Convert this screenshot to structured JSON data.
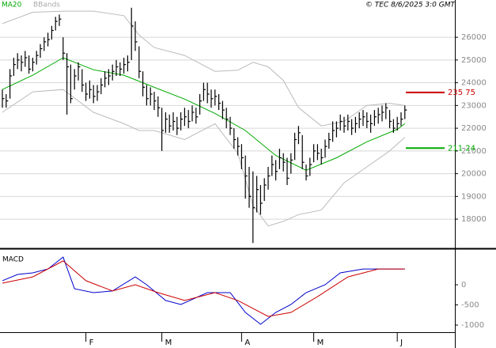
{
  "chart_data": [
    {
      "type": "ohlc",
      "source": "© TEC 8/6/2025 3:0 GMT",
      "xlim": [
        -0.625,
        119.17
      ],
      "ylim": [
        16750,
        27640
      ],
      "yticks": [
        18000,
        19000,
        20000,
        21000,
        22000,
        23000,
        24000,
        25000,
        26000
      ],
      "grid": true,
      "bar_color": "#000000",
      "close": [
        23300,
        23200,
        24300,
        24800,
        25000,
        24900,
        25100,
        24600,
        24900,
        25200,
        25500,
        25800,
        25900,
        26300,
        26700,
        26800,
        25300,
        24700,
        23300,
        24300,
        24700,
        23900,
        23500,
        23700,
        23400,
        23600,
        23900,
        24200,
        24300,
        24500,
        24700,
        24600,
        24800,
        24900,
        26500,
        25800,
        24500,
        23800,
        23300,
        23500,
        23200,
        22900,
        21900,
        22400,
        22100,
        22300,
        22000,
        22400,
        22500,
        22300,
        22700,
        22500,
        23200,
        23700,
        23500,
        23300,
        23400,
        23100,
        22800,
        22400,
        22000,
        21500,
        21200,
        20700,
        19900,
        19000,
        18500,
        19300,
        18700,
        19500,
        19900,
        20400,
        20100,
        20700,
        20500,
        19800,
        20600,
        21500,
        21800,
        20500,
        19900,
        20400,
        21000,
        20900,
        20700,
        21200,
        21500,
        21900,
        22000,
        22300,
        22100,
        22300,
        22000,
        22200,
        22400,
        22500,
        22300,
        22200,
        22500,
        22600,
        22700,
        22900,
        22300,
        22000,
        22200,
        22400,
        22800
      ],
      "high": [
        23700,
        23500,
        24600,
        25100,
        25300,
        25200,
        25400,
        25200,
        25100,
        25400,
        25700,
        26000,
        26200,
        26500,
        26900,
        27000,
        26000,
        25300,
        24800,
        24600,
        24900,
        24600,
        24000,
        24100,
        23900,
        23900,
        24200,
        24500,
        24600,
        24800,
        25000,
        24900,
        25100,
        25200,
        27300,
        26700,
        25600,
        24500,
        23900,
        23800,
        23600,
        23400,
        22900,
        22700,
        22600,
        22700,
        22500,
        22700,
        22900,
        22800,
        23000,
        22900,
        23500,
        24000,
        24000,
        23700,
        23700,
        23500,
        23200,
        22900,
        22500,
        22000,
        21600,
        21300,
        20800,
        20300,
        20100,
        19900,
        19500,
        19800,
        20300,
        20800,
        20600,
        21100,
        20900,
        20700,
        20900,
        21800,
        22100,
        21700,
        20400,
        20700,
        21300,
        21300,
        21100,
        21500,
        21800,
        22300,
        22300,
        22600,
        22500,
        22600,
        22400,
        22500,
        22700,
        22800,
        22700,
        22600,
        22800,
        22900,
        23000,
        23100,
        22800,
        22400,
        22500,
        22700,
        23000
      ],
      "low": [
        22900,
        22900,
        23300,
        24300,
        24600,
        24500,
        24700,
        24400,
        24500,
        24800,
        25100,
        25400,
        25600,
        25900,
        26300,
        26500,
        25000,
        22600,
        23100,
        23700,
        24100,
        23600,
        23200,
        23300,
        23100,
        23200,
        23500,
        23800,
        23900,
        24100,
        24300,
        24300,
        24400,
        24500,
        25000,
        25400,
        24200,
        23400,
        23000,
        23000,
        22800,
        22500,
        21000,
        21800,
        21800,
        21900,
        21700,
        21900,
        22100,
        22000,
        22300,
        22200,
        22600,
        23200,
        23100,
        22900,
        23000,
        22800,
        22400,
        22000,
        21700,
        21100,
        20800,
        20200,
        18900,
        18500,
        16950,
        18300,
        18200,
        18800,
        19300,
        19900,
        19700,
        20200,
        20100,
        19500,
        20000,
        20600,
        21300,
        20200,
        19700,
        19900,
        20500,
        20600,
        20400,
        20700,
        21100,
        21400,
        21600,
        21900,
        21800,
        21900,
        21700,
        21800,
        22000,
        22100,
        22000,
        21800,
        22100,
        22200,
        22300,
        22400,
        22000,
        21800,
        21900,
        22100,
        22400
      ],
      "series": [
        {
          "name": "MA20",
          "color": "#00aa00",
          "x": [
            0,
            8,
            16,
            24,
            32,
            40,
            48,
            56,
            64,
            72,
            80,
            88,
            96,
            104,
            106
          ],
          "values": [
            23700,
            24330,
            25100,
            24570,
            24330,
            23800,
            23280,
            22650,
            21900,
            20800,
            20150,
            20700,
            21400,
            21950,
            22200
          ]
        },
        {
          "name": "BBands",
          "color": "#bbbbbb",
          "x": [
            0,
            8,
            16,
            24,
            32,
            36,
            40,
            48,
            56,
            62,
            66,
            70,
            74,
            78,
            84,
            90,
            96,
            102,
            106
          ],
          "values": [
            26600,
            27100,
            27150,
            27150,
            26950,
            26100,
            25550,
            25200,
            24500,
            24550,
            24900,
            24700,
            24100,
            22900,
            22100,
            22300,
            23000,
            23100,
            23000
          ],
          "lower": [
            22700,
            23600,
            23700,
            22700,
            22200,
            21900,
            21900,
            21500,
            22200,
            20900,
            18600,
            17700,
            17900,
            18200,
            18400,
            19600,
            20300,
            21000,
            21600
          ]
        }
      ],
      "levels": [
        {
          "value": 23575,
          "label": "235 75",
          "color": "#cc0000"
        },
        {
          "value": 21124,
          "label": "211 24",
          "color": "#00aa00"
        }
      ]
    },
    {
      "type": "macd",
      "title": "MACD",
      "xlim": [
        -0.625,
        119.17
      ],
      "ylim": [
        -1176,
        863
      ],
      "yticks": [
        0,
        -500,
        -1000
      ],
      "xticks": [
        {
          "value": 22,
          "label": "F"
        },
        {
          "value": 42,
          "label": "M"
        },
        {
          "value": 63,
          "label": "A"
        },
        {
          "value": 82,
          "label": "M"
        },
        {
          "value": 104,
          "label": "J"
        }
      ],
      "series": [
        {
          "color": "#0000cc",
          "x": [
            0,
            4,
            8,
            12,
            16,
            19,
            24,
            29,
            35,
            38,
            43,
            47,
            54,
            60,
            64,
            68,
            72,
            76,
            80,
            85,
            89,
            95,
            101,
            106
          ],
          "values": [
            100,
            255,
            295,
            390,
            685,
            -100,
            -195,
            -155,
            195,
            0,
            -390,
            -490,
            -195,
            -195,
            -685,
            -980,
            -685,
            -490,
            -195,
            0,
            295,
            390,
            390,
            390
          ]
        },
        {
          "color": "#cc0000",
          "x": [
            0,
            8,
            16,
            22,
            29,
            35,
            41,
            48,
            56,
            62,
            70,
            76,
            83,
            91,
            99,
            106
          ],
          "values": [
            40,
            195,
            590,
            100,
            -155,
            0,
            -195,
            -390,
            -195,
            -390,
            -785,
            -685,
            -295,
            195,
            390,
            390
          ]
        }
      ]
    }
  ]
}
